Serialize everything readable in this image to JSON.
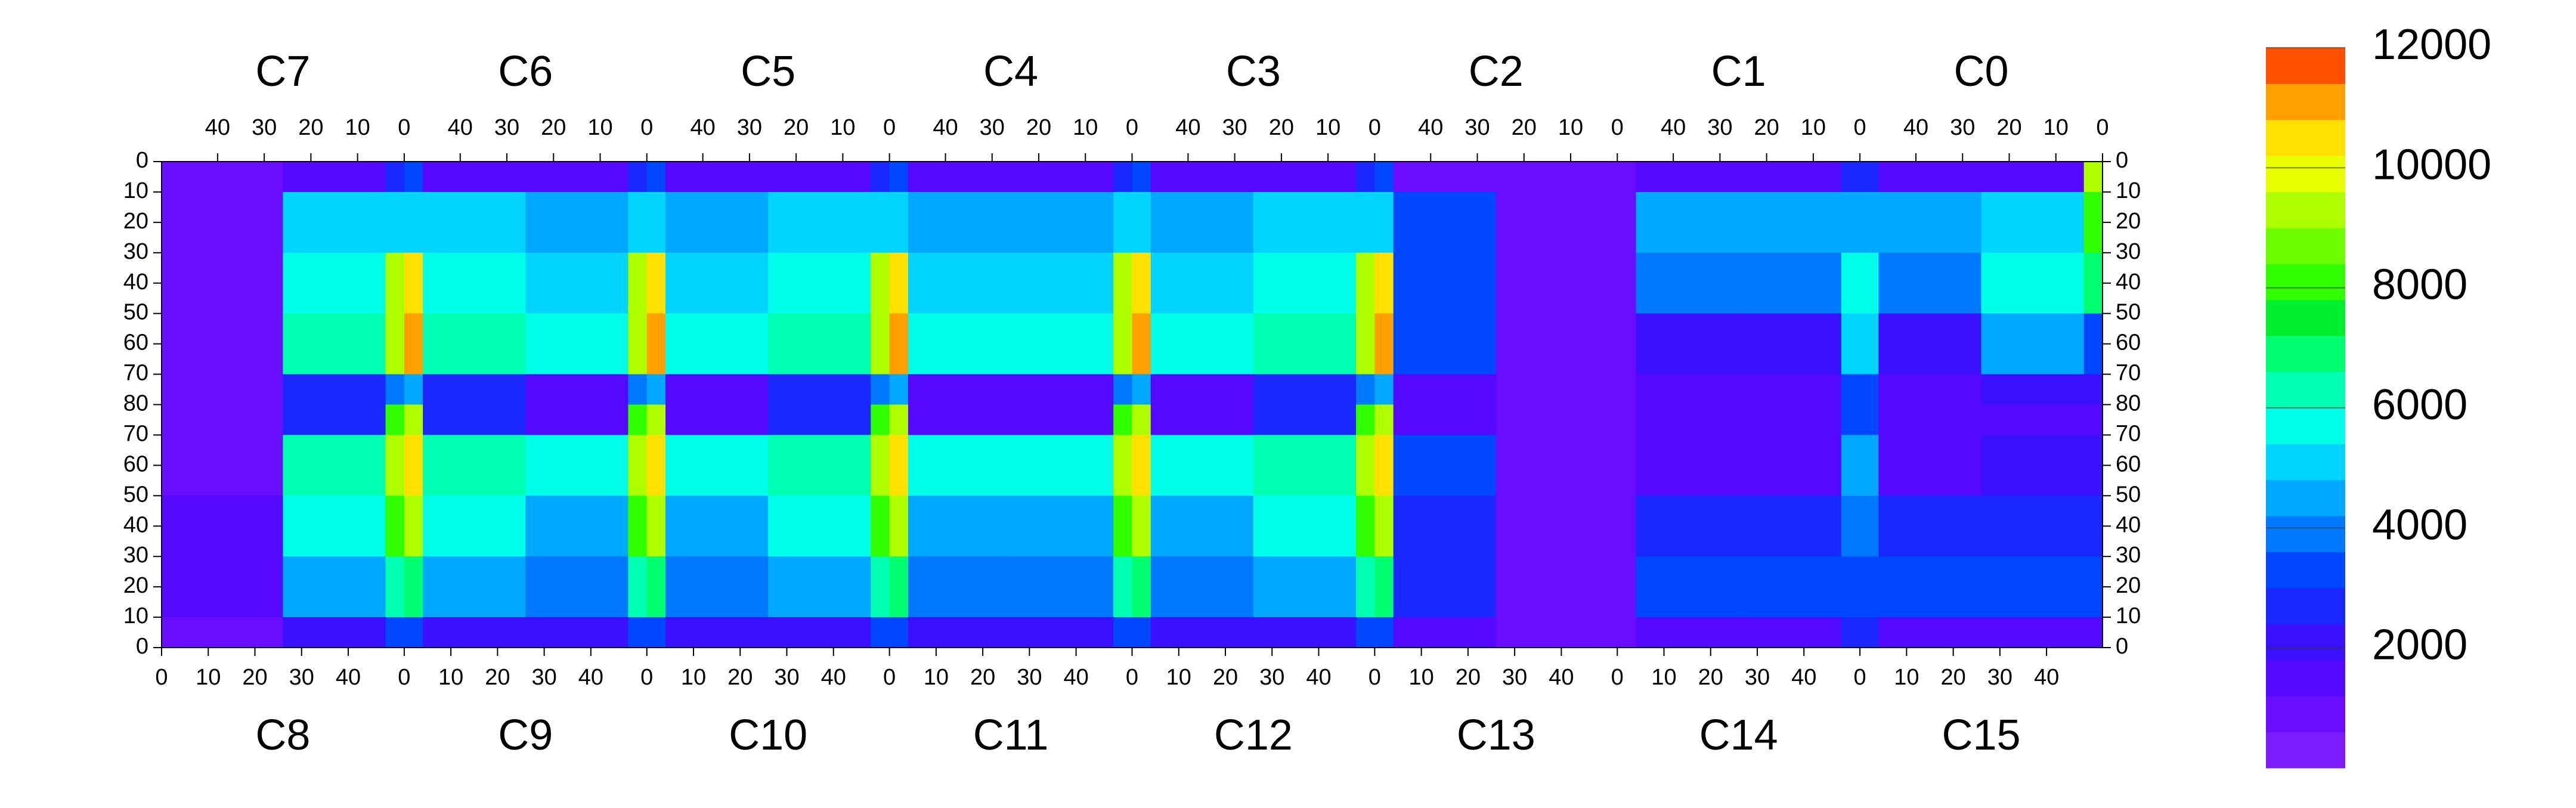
{
  "chart_data": {
    "type": "heatmap",
    "top_labels": [
      "C7",
      "C6",
      "C5",
      "C4",
      "C3",
      "C2",
      "C1",
      "C0"
    ],
    "bottom_labels": [
      "C8",
      "C9",
      "C10",
      "C11",
      "C12",
      "C13",
      "C14",
      "C15"
    ],
    "xlim": [
      0,
      416
    ],
    "ylim": [
      0,
      160
    ],
    "xbins": [
      0,
      4,
      26,
      48,
      52,
      56,
      78,
      100,
      104,
      108,
      130,
      152,
      156,
      160,
      182,
      204,
      208,
      212,
      234,
      256,
      260,
      264,
      286,
      308,
      312,
      316,
      338,
      360,
      364,
      368,
      390,
      412,
      416
    ],
    "ybins": [
      0,
      10,
      30,
      50,
      70,
      80,
      90,
      110,
      130,
      150,
      160
    ],
    "z": [
      [
        600,
        600,
        1500,
        2500,
        3000,
        1500,
        1500,
        2500,
        3000,
        1500,
        1500,
        2500,
        3000,
        1500,
        1500,
        2500,
        3000,
        1500,
        1500,
        2500,
        3000,
        1000,
        700,
        700,
        700,
        1500,
        1500,
        2500,
        2500,
        1500,
        1500,
        9000
      ],
      [
        900,
        900,
        5000,
        4800,
        5000,
        5000,
        4500,
        4800,
        5000,
        4500,
        5000,
        4800,
        5000,
        4500,
        4500,
        4800,
        5000,
        4500,
        5000,
        4800,
        5000,
        3000,
        700,
        700,
        700,
        4500,
        4500,
        4500,
        4500,
        4500,
        5000,
        8000
      ],
      [
        900,
        900,
        5500,
        9000,
        10500,
        5500,
        5000,
        9000,
        10500,
        5000,
        5500,
        9000,
        10500,
        5000,
        5000,
        9000,
        10500,
        5000,
        5500,
        9000,
        10500,
        3000,
        700,
        700,
        700,
        4000,
        4000,
        5500,
        5500,
        4000,
        5500,
        7000
      ],
      [
        900,
        900,
        6500,
        9500,
        11000,
        6500,
        5500,
        9500,
        11000,
        5500,
        6500,
        9500,
        11000,
        5500,
        5500,
        9500,
        11000,
        5500,
        6500,
        9500,
        11000,
        3000,
        700,
        700,
        700,
        2000,
        2000,
        5000,
        5000,
        2000,
        4500,
        3500
      ],
      [
        800,
        800,
        2500,
        4000,
        4500,
        2500,
        1200,
        4000,
        4500,
        1200,
        2500,
        4000,
        4500,
        1200,
        1200,
        4000,
        4500,
        1200,
        2500,
        4000,
        4500,
        1500,
        700,
        700,
        700,
        1500,
        1500,
        3500,
        3500,
        1500,
        2000,
        2000
      ],
      [
        900,
        900,
        2500,
        8000,
        9000,
        2500,
        1200,
        8000,
        9000,
        1200,
        2500,
        8000,
        9000,
        1200,
        1200,
        8000,
        9000,
        1200,
        2500,
        8000,
        9000,
        1500,
        700,
        700,
        700,
        1200,
        1200,
        3500,
        3500,
        1200,
        1500,
        1500
      ],
      [
        900,
        900,
        6500,
        9000,
        10500,
        6500,
        5500,
        9000,
        10500,
        5500,
        6500,
        9000,
        10500,
        5500,
        5500,
        9000,
        10500,
        5500,
        6500,
        9000,
        10500,
        3000,
        700,
        700,
        700,
        1500,
        1500,
        4500,
        4500,
        1500,
        2000,
        2000
      ],
      [
        1200,
        1200,
        5500,
        8000,
        9000,
        5500,
        4500,
        8000,
        9000,
        4500,
        5500,
        8000,
        9000,
        4500,
        4500,
        8000,
        9000,
        4500,
        5500,
        8000,
        9000,
        2500,
        700,
        700,
        700,
        2500,
        2500,
        4000,
        4000,
        2500,
        2500,
        2500
      ],
      [
        1500,
        1500,
        4500,
        6000,
        7000,
        4500,
        4000,
        6000,
        7000,
        4000,
        4500,
        6000,
        7000,
        4000,
        4000,
        6000,
        7000,
        4000,
        4500,
        6000,
        7000,
        2500,
        700,
        700,
        700,
        3000,
        3000,
        3500,
        3500,
        3000,
        3000,
        3000
      ],
      [
        800,
        800,
        2000,
        3000,
        3500,
        2000,
        2000,
        3000,
        3500,
        2000,
        2000,
        3000,
        3500,
        2000,
        2000,
        3000,
        3500,
        2000,
        2000,
        3000,
        3500,
        1200,
        700,
        700,
        700,
        1500,
        1500,
        2500,
        2500,
        1500,
        1500,
        1500
      ]
    ],
    "yticks": [
      0,
      10,
      20,
      30,
      40,
      50,
      60,
      70,
      80,
      {
        "value": 90,
        "label": "70"
      },
      {
        "value": 100,
        "label": "60"
      },
      {
        "value": 110,
        "label": "50"
      },
      {
        "value": 120,
        "label": "40"
      },
      {
        "value": 130,
        "label": "30"
      },
      {
        "value": 140,
        "label": "20"
      },
      {
        "value": 150,
        "label": "10"
      },
      {
        "value": 160,
        "label": "0"
      }
    ],
    "xticks": [
      0,
      10,
      20,
      30,
      40,
      {
        "value": 52,
        "label": "0"
      },
      {
        "value": 62,
        "label": "10"
      },
      {
        "value": 72,
        "label": "20"
      },
      {
        "value": 82,
        "label": "30"
      },
      {
        "value": 92,
        "label": "40"
      },
      {
        "value": 104,
        "label": "0"
      },
      {
        "value": 114,
        "label": "10"
      },
      {
        "value": 124,
        "label": "20"
      },
      {
        "value": 134,
        "label": "30"
      },
      {
        "value": 144,
        "label": "40"
      },
      {
        "value": 156,
        "label": "0"
      },
      {
        "value": 166,
        "label": "10"
      },
      {
        "value": 176,
        "label": "20"
      },
      {
        "value": 186,
        "label": "30"
      },
      {
        "value": 196,
        "label": "40"
      },
      {
        "value": 208,
        "label": "0"
      },
      {
        "value": 218,
        "label": "10"
      },
      {
        "value": 228,
        "label": "20"
      },
      {
        "value": 238,
        "label": "30"
      },
      {
        "value": 248,
        "label": "40"
      },
      {
        "value": 260,
        "label": "0"
      },
      {
        "value": 270,
        "label": "10"
      },
      {
        "value": 280,
        "label": "20"
      },
      {
        "value": 290,
        "label": "30"
      },
      {
        "value": 300,
        "label": "40"
      },
      {
        "value": 312,
        "label": "0"
      },
      {
        "value": 322,
        "label": "10"
      },
      {
        "value": 332,
        "label": "20"
      },
      {
        "value": 342,
        "label": "30"
      },
      {
        "value": 352,
        "label": "40"
      },
      {
        "value": 364,
        "label": "0"
      },
      {
        "value": 374,
        "label": "10"
      },
      {
        "value": 384,
        "label": "20"
      },
      {
        "value": 394,
        "label": "30"
      },
      {
        "value": 404,
        "label": "40"
      }
    ],
    "x2ticks": [
      {
        "value": 12,
        "label": "40"
      },
      {
        "value": 22,
        "label": "30"
      },
      {
        "value": 32,
        "label": "20"
      },
      {
        "value": 42,
        "label": "10"
      },
      {
        "value": 52,
        "label": "0"
      },
      {
        "value": 64,
        "label": "40"
      },
      {
        "value": 74,
        "label": "30"
      },
      {
        "value": 84,
        "label": "20"
      },
      {
        "value": 94,
        "label": "10"
      },
      {
        "value": 104,
        "label": "0"
      },
      {
        "value": 116,
        "label": "40"
      },
      {
        "value": 126,
        "label": "30"
      },
      {
        "value": 136,
        "label": "20"
      },
      {
        "value": 146,
        "label": "10"
      },
      {
        "value": 156,
        "label": "0"
      },
      {
        "value": 168,
        "label": "40"
      },
      {
        "value": 178,
        "label": "30"
      },
      {
        "value": 188,
        "label": "20"
      },
      {
        "value": 198,
        "label": "10"
      },
      {
        "value": 208,
        "label": "0"
      },
      {
        "value": 220,
        "label": "40"
      },
      {
        "value": 230,
        "label": "30"
      },
      {
        "value": 240,
        "label": "20"
      },
      {
        "value": 250,
        "label": "10"
      },
      {
        "value": 260,
        "label": "0"
      },
      {
        "value": 272,
        "label": "40"
      },
      {
        "value": 282,
        "label": "30"
      },
      {
        "value": 292,
        "label": "20"
      },
      {
        "value": 302,
        "label": "10"
      },
      {
        "value": 312,
        "label": "0"
      },
      {
        "value": 324,
        "label": "40"
      },
      {
        "value": 334,
        "label": "30"
      },
      {
        "value": 344,
        "label": "20"
      },
      {
        "value": 354,
        "label": "10"
      },
      {
        "value": 364,
        "label": "0"
      },
      {
        "value": 376,
        "label": "40"
      },
      {
        "value": 386,
        "label": "30"
      },
      {
        "value": 396,
        "label": "20"
      },
      {
        "value": 406,
        "label": "10"
      },
      {
        "value": 416,
        "label": "0"
      }
    ],
    "zlim": [
      0,
      12000
    ],
    "zticks": [
      2000,
      4000,
      6000,
      8000,
      10000,
      12000
    ],
    "colorscale": [
      "#7d1cff",
      "#6a0dff",
      "#5508ff",
      "#3a10ff",
      "#1a28ff",
      "#0048ff",
      "#0078ff",
      "#00a8ff",
      "#00d4ff",
      "#00ffe8",
      "#00ffb0",
      "#00ff70",
      "#00f030",
      "#30ff00",
      "#70ff00",
      "#b0ff00",
      "#e8ff00",
      "#ffe000",
      "#ffa000",
      "#ff5000"
    ]
  }
}
